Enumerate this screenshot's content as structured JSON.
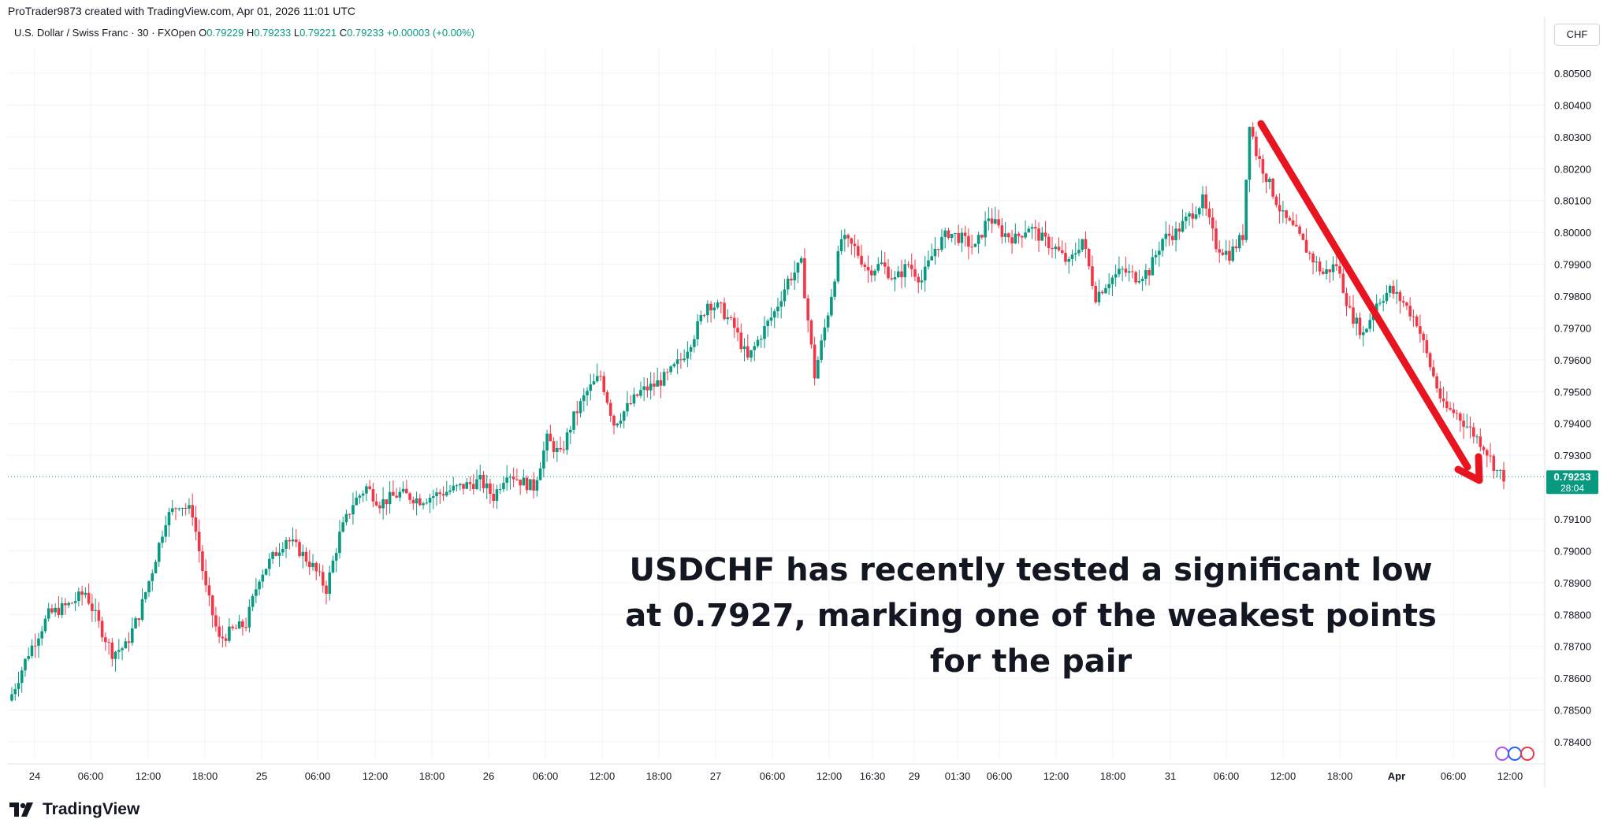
{
  "header": {
    "creator": "ProTrader9873 created with TradingView.com, Apr 01, 2026 11:01 UTC",
    "symbol": "U.S. Dollar / Swiss Franc · 30 · FXOpen",
    "o_label": "O",
    "o_value": "0.79229",
    "h_label": "H",
    "h_value": "0.79233",
    "l_label": "L",
    "l_value": "0.79221",
    "c_label": "C",
    "c_value": "0.79233",
    "change": "+0.00003 (+0.00%)"
  },
  "currency_button": "CHF",
  "brand": "TradingView",
  "colors": {
    "up": "#089981",
    "down": "#f23645",
    "arrow": "#e8141f",
    "grid": "#f0f3fa",
    "axis_text": "#131722",
    "last_price_bg": "#089981"
  },
  "chart_data": {
    "type": "candlestick",
    "symbol": "USDCHF",
    "timeframe": "30",
    "y_ticks": [
      "0.80500",
      "0.80400",
      "0.80300",
      "0.80200",
      "0.80100",
      "0.80000",
      "0.79900",
      "0.79800",
      "0.79700",
      "0.79600",
      "0.79500",
      "0.79400",
      "0.79300",
      "0.79100",
      "0.79000",
      "0.78900",
      "0.78800",
      "0.78700",
      "0.78600",
      "0.78500",
      "0.78400"
    ],
    "ylim": [
      0.7833,
      0.8059
    ],
    "x_ticks": [
      "24",
      "06:00",
      "12:00",
      "18:00",
      "25",
      "06:00",
      "12:00",
      "18:00",
      "26",
      "06:00",
      "12:00",
      "18:00",
      "27",
      "06:00",
      "12:00",
      "16:30",
      "29",
      "01:30",
      "06:00",
      "12:00",
      "18:00",
      "31",
      "06:00",
      "12:00",
      "18:00",
      "Apr",
      "06:00",
      "12:00"
    ],
    "price_path": [
      [
        0,
        0.7855
      ],
      [
        5,
        0.7868
      ],
      [
        11,
        0.788
      ],
      [
        17,
        0.7883
      ],
      [
        22,
        0.7887
      ],
      [
        26,
        0.7877
      ],
      [
        30,
        0.7868
      ],
      [
        34,
        0.787
      ],
      [
        38,
        0.788
      ],
      [
        42,
        0.7894
      ],
      [
        46,
        0.791
      ],
      [
        50,
        0.7915
      ],
      [
        54,
        0.7912
      ],
      [
        58,
        0.7888
      ],
      [
        62,
        0.7872
      ],
      [
        66,
        0.7875
      ],
      [
        70,
        0.7877
      ],
      [
        74,
        0.7892
      ],
      [
        78,
        0.7898
      ],
      [
        82,
        0.7904
      ],
      [
        86,
        0.79
      ],
      [
        90,
        0.7895
      ],
      [
        94,
        0.7888
      ],
      [
        98,
        0.7905
      ],
      [
        102,
        0.7915
      ],
      [
        106,
        0.792
      ],
      [
        110,
        0.7915
      ],
      [
        116,
        0.7918
      ],
      [
        122,
        0.7916
      ],
      [
        128,
        0.7918
      ],
      [
        134,
        0.792
      ],
      [
        140,
        0.7922
      ],
      [
        144,
        0.7917
      ],
      [
        148,
        0.7925
      ],
      [
        152,
        0.7922
      ],
      [
        156,
        0.792
      ],
      [
        160,
        0.7935
      ],
      [
        164,
        0.793
      ],
      [
        168,
        0.7942
      ],
      [
        172,
        0.795
      ],
      [
        176,
        0.7955
      ],
      [
        180,
        0.794
      ],
      [
        184,
        0.7945
      ],
      [
        188,
        0.795
      ],
      [
        192,
        0.7952
      ],
      [
        196,
        0.7955
      ],
      [
        200,
        0.796
      ],
      [
        204,
        0.7968
      ],
      [
        208,
        0.7978
      ],
      [
        212,
        0.7976
      ],
      [
        216,
        0.797
      ],
      [
        220,
        0.796
      ],
      [
        224,
        0.7968
      ],
      [
        228,
        0.7975
      ],
      [
        232,
        0.7985
      ],
      [
        236,
        0.799
      ],
      [
        240,
        0.7955
      ],
      [
        244,
        0.7975
      ],
      [
        248,
        0.7998
      ],
      [
        252,
        0.7995
      ],
      [
        256,
        0.7988
      ],
      [
        260,
        0.799
      ],
      [
        264,
        0.7985
      ],
      [
        268,
        0.799
      ],
      [
        272,
        0.7985
      ],
      [
        276,
        0.7995
      ],
      [
        280,
        0.8
      ],
      [
        284,
        0.7998
      ],
      [
        288,
        0.7995
      ],
      [
        292,
        0.8005
      ],
      [
        296,
        0.8
      ],
      [
        300,
        0.7998
      ],
      [
        304,
        0.8002
      ],
      [
        308,
        0.7998
      ],
      [
        312,
        0.7995
      ],
      [
        316,
        0.799
      ],
      [
        320,
        0.7998
      ],
      [
        324,
        0.798
      ],
      [
        328,
        0.7985
      ],
      [
        332,
        0.7988
      ],
      [
        336,
        0.7986
      ],
      [
        340,
        0.7988
      ],
      [
        344,
        0.7998
      ],
      [
        348,
        0.8
      ],
      [
        352,
        0.8005
      ],
      [
        356,
        0.801
      ],
      [
        360,
        0.7996
      ],
      [
        364,
        0.7993
      ],
      [
        368,
        0.7999
      ],
      [
        370,
        0.8035
      ],
      [
        372,
        0.8025
      ],
      [
        376,
        0.8015
      ],
      [
        380,
        0.8005
      ],
      [
        384,
        0.8
      ],
      [
        388,
        0.7993
      ],
      [
        392,
        0.7987
      ],
      [
        396,
        0.799
      ],
      [
        400,
        0.7975
      ],
      [
        404,
        0.7968
      ],
      [
        408,
        0.7978
      ],
      [
        412,
        0.7982
      ],
      [
        416,
        0.7978
      ],
      [
        420,
        0.7972
      ],
      [
        424,
        0.7958
      ],
      [
        428,
        0.7945
      ],
      [
        432,
        0.7943
      ],
      [
        436,
        0.7938
      ],
      [
        440,
        0.7933
      ],
      [
        444,
        0.7925
      ],
      [
        446,
        0.79233
      ]
    ],
    "last_price": "0.79233",
    "countdown": "28:04",
    "annotation": [
      "USDCHF has recently tested a significant low",
      "at 0.7927, marking one of the weakest points",
      "for the pair"
    ],
    "grid": true
  }
}
